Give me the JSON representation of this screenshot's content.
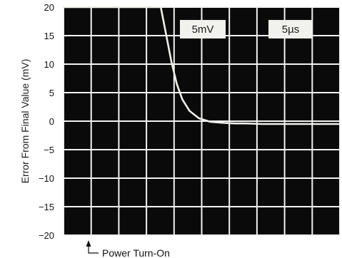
{
  "chart_data": {
    "type": "line",
    "ylabel": "Error From Final Value (mV)",
    "xlabel": "",
    "ylim": [
      -20,
      20
    ],
    "yticks": [
      20,
      15,
      10,
      5,
      0,
      -5,
      -10,
      -15,
      -20
    ],
    "ytick_labels": [
      "20",
      "15",
      "10",
      "5",
      "0",
      "−5",
      "−10",
      "−15",
      "−20"
    ],
    "x_divisions": 10,
    "y_divisions": 8,
    "grid": true,
    "scope_labels": {
      "volts_per_div": "5mV",
      "time_per_div": "5µs"
    },
    "x_units": "µs",
    "xlim": [
      0,
      50
    ],
    "series": [
      {
        "x": [
          0,
          17.6,
          18.5,
          19.5,
          20.5,
          21.5,
          22.8,
          24.5,
          26.5,
          29,
          31,
          33,
          36,
          40,
          44,
          48,
          50
        ],
        "y": [
          20,
          20,
          15.5,
          10.5,
          6.5,
          3.8,
          1.8,
          0.5,
          -0.1,
          -0.3,
          -0.4,
          -0.4,
          -0.5,
          -0.5,
          -0.5,
          -0.5,
          -0.5
        ]
      }
    ],
    "annotation": {
      "text": "Power Turn-On",
      "x": 1
    }
  },
  "colors": {
    "screen": "#0a0a0a",
    "grid": "#f2f2f2",
    "trace": "#eeeeea",
    "badge": "#f1f1ee",
    "text": "#111111"
  }
}
